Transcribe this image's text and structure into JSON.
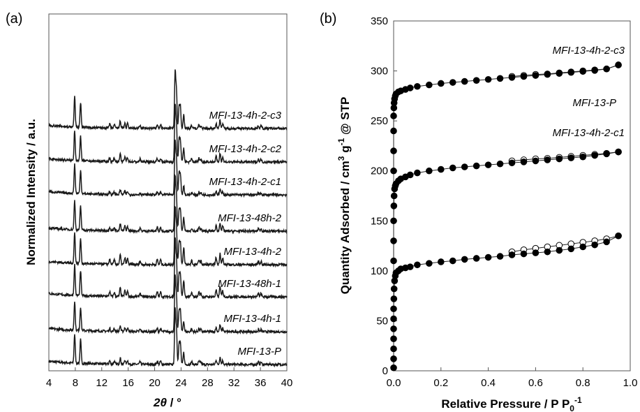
{
  "chart_data": [
    {
      "type": "line",
      "panel": "(a)",
      "xlabel_symbol": "2θ",
      "xlabel_unit": " / °",
      "ylabel": "Normalized Intensity / a.u.",
      "xlim": [
        4,
        40
      ],
      "xticks": [
        4,
        8,
        12,
        16,
        20,
        24,
        28,
        32,
        36,
        40
      ],
      "yticks": [],
      "grid": false,
      "peaks": {
        "positions": [
          7.9,
          8.8,
          13.2,
          13.9,
          14.8,
          15.5,
          15.9,
          17.8,
          20.4,
          20.9,
          23.1,
          23.3,
          23.7,
          23.9,
          24.4,
          25.6,
          26.7,
          27.0,
          29.3,
          29.9,
          30.3,
          35.7,
          36.1
        ],
        "heights": [
          0.55,
          0.45,
          0.07,
          0.06,
          0.13,
          0.09,
          0.08,
          0.05,
          0.07,
          0.07,
          1.0,
          0.65,
          0.4,
          0.38,
          0.25,
          0.06,
          0.07,
          0.05,
          0.1,
          0.16,
          0.09,
          0.05,
          0.05
        ]
      },
      "series": [
        {
          "name": "MFI-13-P",
          "offset": 0,
          "scale": 1.0,
          "low_scale": 0.9
        },
        {
          "name": "MFI-13-4h-1",
          "offset": 1,
          "scale": 1.0,
          "low_scale": 0.8
        },
        {
          "name": "MFI-13-48h-1",
          "offset": 2,
          "scale": 1.05,
          "low_scale": 1.2
        },
        {
          "name": "MFI-13-4h-2",
          "offset": 3,
          "scale": 1.05,
          "low_scale": 1.3
        },
        {
          "name": "MFI-13-48h-2",
          "offset": 4,
          "scale": 1.0,
          "low_scale": 1.0
        },
        {
          "name": "MFI-13-4h-2-c1",
          "offset": 5,
          "scale": 1.0,
          "low_scale": 0.7
        },
        {
          "name": "MFI-13-4h-2-c2",
          "offset": 6,
          "scale": 1.05,
          "low_scale": 1.0
        },
        {
          "name": "MFI-13-4h-2-c3",
          "offset": 7,
          "scale": 1.05,
          "low_scale": 1.0
        }
      ]
    },
    {
      "type": "scatter",
      "panel": "(b)",
      "xlabel_base": "Relative Pressure / P P",
      "xlabel_sub": "0",
      "xlabel_sup": "-1",
      "ylabel_base": "Quantity Adsorbed / cm",
      "ylabel_sup1": "3",
      "ylabel_mid": " g",
      "ylabel_sup2": "-1",
      "ylabel_tail": " @ STP",
      "xlim": [
        0,
        1.0
      ],
      "ylim": [
        0,
        350
      ],
      "xticks": [
        "0.0",
        "0.2",
        "0.4",
        "0.6",
        "0.8",
        "1.0"
      ],
      "yticks": [
        0,
        50,
        100,
        150,
        200,
        250,
        300,
        350
      ],
      "grid": false,
      "legend": "none",
      "series": [
        {
          "name": "MFI-13-P",
          "adsorption": {
            "x": [
              0.0,
              0.0,
              0.0,
              0.0,
              0.0,
              0.0,
              0.0,
              0.001,
              0.002,
              0.004,
              0.007,
              0.01,
              0.02,
              0.03,
              0.05,
              0.07,
              0.1,
              0.15,
              0.2,
              0.25,
              0.3,
              0.35,
              0.4,
              0.45,
              0.5,
              0.55,
              0.6,
              0.65,
              0.7,
              0.75,
              0.8,
              0.85,
              0.9,
              0.95
            ],
            "y": [
              3,
              12,
              22,
              32,
              42,
              52,
              62,
              72,
              82,
              90,
              95,
              98,
              100,
              102,
              103,
              104,
              106,
              107.5,
              109,
              110,
              111.5,
              112.5,
              113.5,
              114.5,
              116,
              117,
              118,
              119,
              120.5,
              122,
              124,
              126,
              129,
              135
            ]
          },
          "desorption": {
            "x": [
              0.95,
              0.9,
              0.85,
              0.8,
              0.75,
              0.7,
              0.65,
              0.6,
              0.55,
              0.5
            ],
            "y": [
              135,
              132,
              130,
              128.5,
              127,
              125.5,
              124,
              122.5,
              121,
              119
            ]
          }
        },
        {
          "name": "MFI-13-4h-2-c1",
          "adsorption": {
            "x": [
              0.0,
              0.0,
              0.0,
              0.001,
              0.002,
              0.004,
              0.007,
              0.01,
              0.02,
              0.03,
              0.05,
              0.07,
              0.1,
              0.15,
              0.2,
              0.25,
              0.3,
              0.35,
              0.4,
              0.45,
              0.5,
              0.55,
              0.6,
              0.65,
              0.7,
              0.75,
              0.8,
              0.85,
              0.9,
              0.95
            ],
            "y": [
              110,
              130,
              150,
              165,
              175,
              182,
              185,
              187,
              190,
              192,
              194,
              196,
              198,
              200,
              201.5,
              203,
              204,
              205,
              206,
              207,
              208,
              209,
              210,
              211,
              212,
              213,
              214,
              215.5,
              217,
              219
            ]
          },
          "desorption": {
            "x": [
              0.95,
              0.9,
              0.85,
              0.8,
              0.75,
              0.7,
              0.65,
              0.6,
              0.55,
              0.5
            ],
            "y": [
              219,
              217.5,
              216.5,
              215.5,
              214.5,
              213.5,
              212.5,
              212,
              211,
              210
            ]
          }
        },
        {
          "name": "MFI-13-4h-2-c3",
          "adsorption": {
            "x": [
              0.0,
              0.0,
              0.0,
              0.0,
              0.001,
              0.002,
              0.004,
              0.007,
              0.01,
              0.02,
              0.03,
              0.05,
              0.07,
              0.1,
              0.15,
              0.2,
              0.25,
              0.3,
              0.35,
              0.4,
              0.45,
              0.5,
              0.55,
              0.6,
              0.65,
              0.7,
              0.75,
              0.8,
              0.85,
              0.9,
              0.95
            ],
            "y": [
              200,
              220,
              240,
              255,
              263,
              268,
              272,
              275,
              277,
              279,
              280,
              281.5,
              283,
              284.5,
              286,
              287.5,
              288.5,
              289.5,
              290.5,
              291.5,
              292.5,
              293.5,
              294.5,
              295.5,
              296.5,
              297.5,
              298.5,
              299.5,
              300.5,
              302,
              306
            ]
          },
          "desorption": {
            "x": [
              0.95,
              0.9,
              0.85,
              0.8,
              0.75,
              0.7,
              0.65,
              0.6,
              0.55,
              0.5
            ],
            "y": [
              306,
              302,
              301,
              300,
              299,
              298,
              297,
              296.5,
              295.5,
              294.5
            ]
          }
        }
      ]
    }
  ]
}
